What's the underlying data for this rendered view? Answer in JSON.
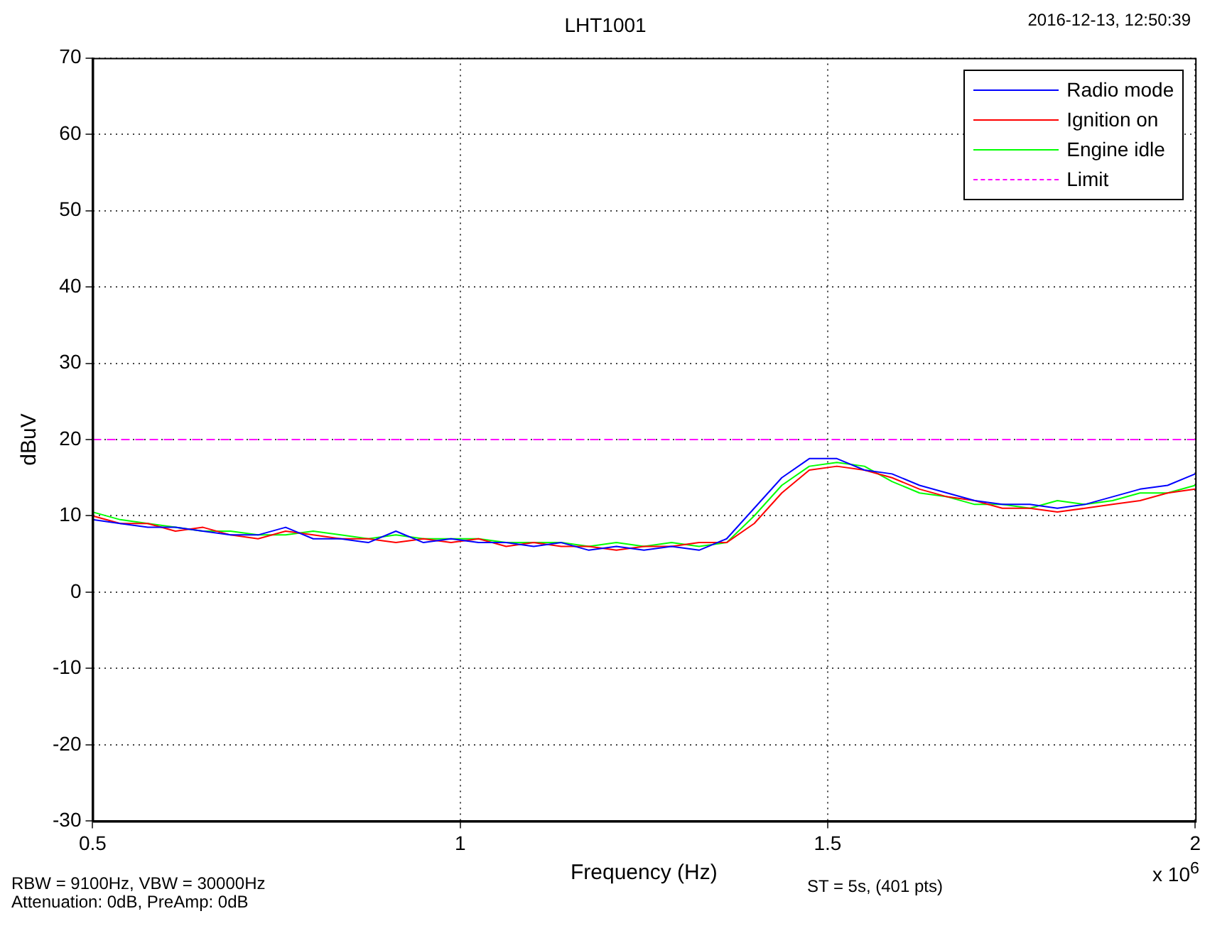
{
  "chart_data": {
    "type": "line",
    "title": "LHT1001",
    "xlabel": "Frequency (Hz)",
    "ylabel": "dBuV",
    "x": [
      0.5,
      0.5375,
      0.575,
      0.6125,
      0.65,
      0.6875,
      0.725,
      0.7625,
      0.8,
      0.8375,
      0.875,
      0.9125,
      0.95,
      0.9875,
      1.025,
      1.0625,
      1.1,
      1.1375,
      1.175,
      1.2125,
      1.25,
      1.2875,
      1.325,
      1.3625,
      1.4,
      1.4375,
      1.475,
      1.5125,
      1.55,
      1.5875,
      1.625,
      1.6625,
      1.7,
      1.7375,
      1.775,
      1.8125,
      1.85,
      1.8875,
      1.925,
      1.9625,
      2
    ],
    "series": [
      {
        "name": "Radio mode",
        "color": "#0000ff",
        "values": [
          9.5,
          9,
          8.5,
          8.5,
          8,
          7.5,
          7.5,
          8.5,
          7,
          7,
          6.5,
          8,
          6.5,
          7,
          6.5,
          6.5,
          6,
          6.5,
          5.5,
          6,
          5.5,
          6,
          5.5,
          7,
          11,
          15,
          17.5,
          17.5,
          16,
          15.5,
          14,
          13,
          12,
          11.5,
          11.5,
          11,
          11.5,
          12.5,
          13.5,
          14,
          15.5
        ]
      },
      {
        "name": "Ignition on",
        "color": "#ff0000",
        "values": [
          10,
          9,
          9,
          8,
          8.5,
          7.5,
          7,
          8,
          7.5,
          7,
          7,
          6.5,
          7,
          6.5,
          7,
          6,
          6.5,
          6,
          6,
          5.5,
          6,
          6,
          6.5,
          6.5,
          9,
          13,
          16,
          16.5,
          16,
          15,
          13.5,
          12.5,
          12,
          11,
          11,
          10.5,
          11,
          11.5,
          12,
          13,
          13.5
        ]
      },
      {
        "name": "Engine idle",
        "color": "#00ff00",
        "values": [
          10.5,
          9.5,
          9,
          8.5,
          8,
          8,
          7.5,
          7.5,
          8,
          7.5,
          7,
          7.5,
          7,
          7,
          7,
          6.5,
          6.5,
          6.5,
          6,
          6.5,
          6,
          6.5,
          6,
          6.5,
          10,
          14,
          16.5,
          17,
          16.5,
          14.5,
          13,
          12.5,
          11.5,
          11.5,
          11,
          12,
          11.5,
          12,
          13,
          13,
          14
        ]
      },
      {
        "name": "Limit",
        "color": "#ff00ff",
        "x": [
          0.5,
          2
        ],
        "values": [
          20,
          20
        ],
        "line_style": "dashed"
      }
    ],
    "xlim": [
      0.5,
      2
    ],
    "xticks": [
      0.5,
      1,
      1.5,
      2
    ],
    "ylim": [
      -30,
      70
    ],
    "yticks": [
      -30,
      -20,
      -10,
      0,
      10,
      20,
      30,
      40,
      50,
      60,
      70
    ],
    "grid": true,
    "legend": "top right",
    "marker": "none",
    "line_style": "solid",
    "annotations": [
      "2016-12-13, 12:50:39",
      "x 10$^{6}$",
      "RBW = 9100Hz, VBW = 30000Hz",
      "Attenuation: 0dB, PreAmp: 0dB",
      "ST = 5s, (401 pts)"
    ]
  }
}
